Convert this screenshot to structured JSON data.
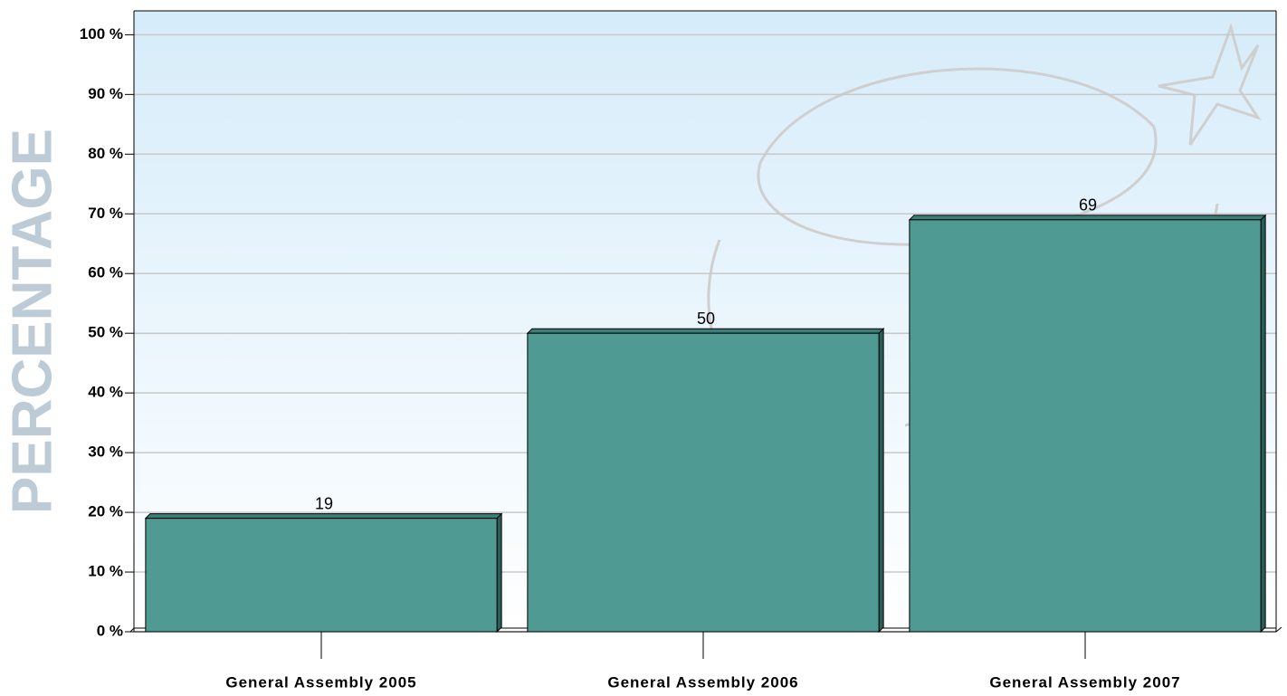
{
  "chart_data": {
    "type": "bar",
    "y_label": "PERCENTAGE",
    "categories": [
      "General Assembly 2005",
      "General Assembly 2006",
      "General Assembly 2007"
    ],
    "values": [
      19,
      50,
      69
    ],
    "color": "#4f9a93",
    "ylim": [
      0,
      104
    ],
    "yticks": [
      {
        "value": 0,
        "label": "0 %"
      },
      {
        "value": 10,
        "label": "10 %"
      },
      {
        "value": 20,
        "label": "20 %"
      },
      {
        "value": 30,
        "label": "30 %"
      },
      {
        "value": 40,
        "label": "40 %"
      },
      {
        "value": 50,
        "label": "50 %"
      },
      {
        "value": 60,
        "label": "60 %"
      },
      {
        "value": 70,
        "label": "70 %"
      },
      {
        "value": 80,
        "label": "80 %"
      },
      {
        "value": 90,
        "label": "90 %"
      },
      {
        "value": 100,
        "label": "100 %"
      }
    ],
    "grid": true
  }
}
